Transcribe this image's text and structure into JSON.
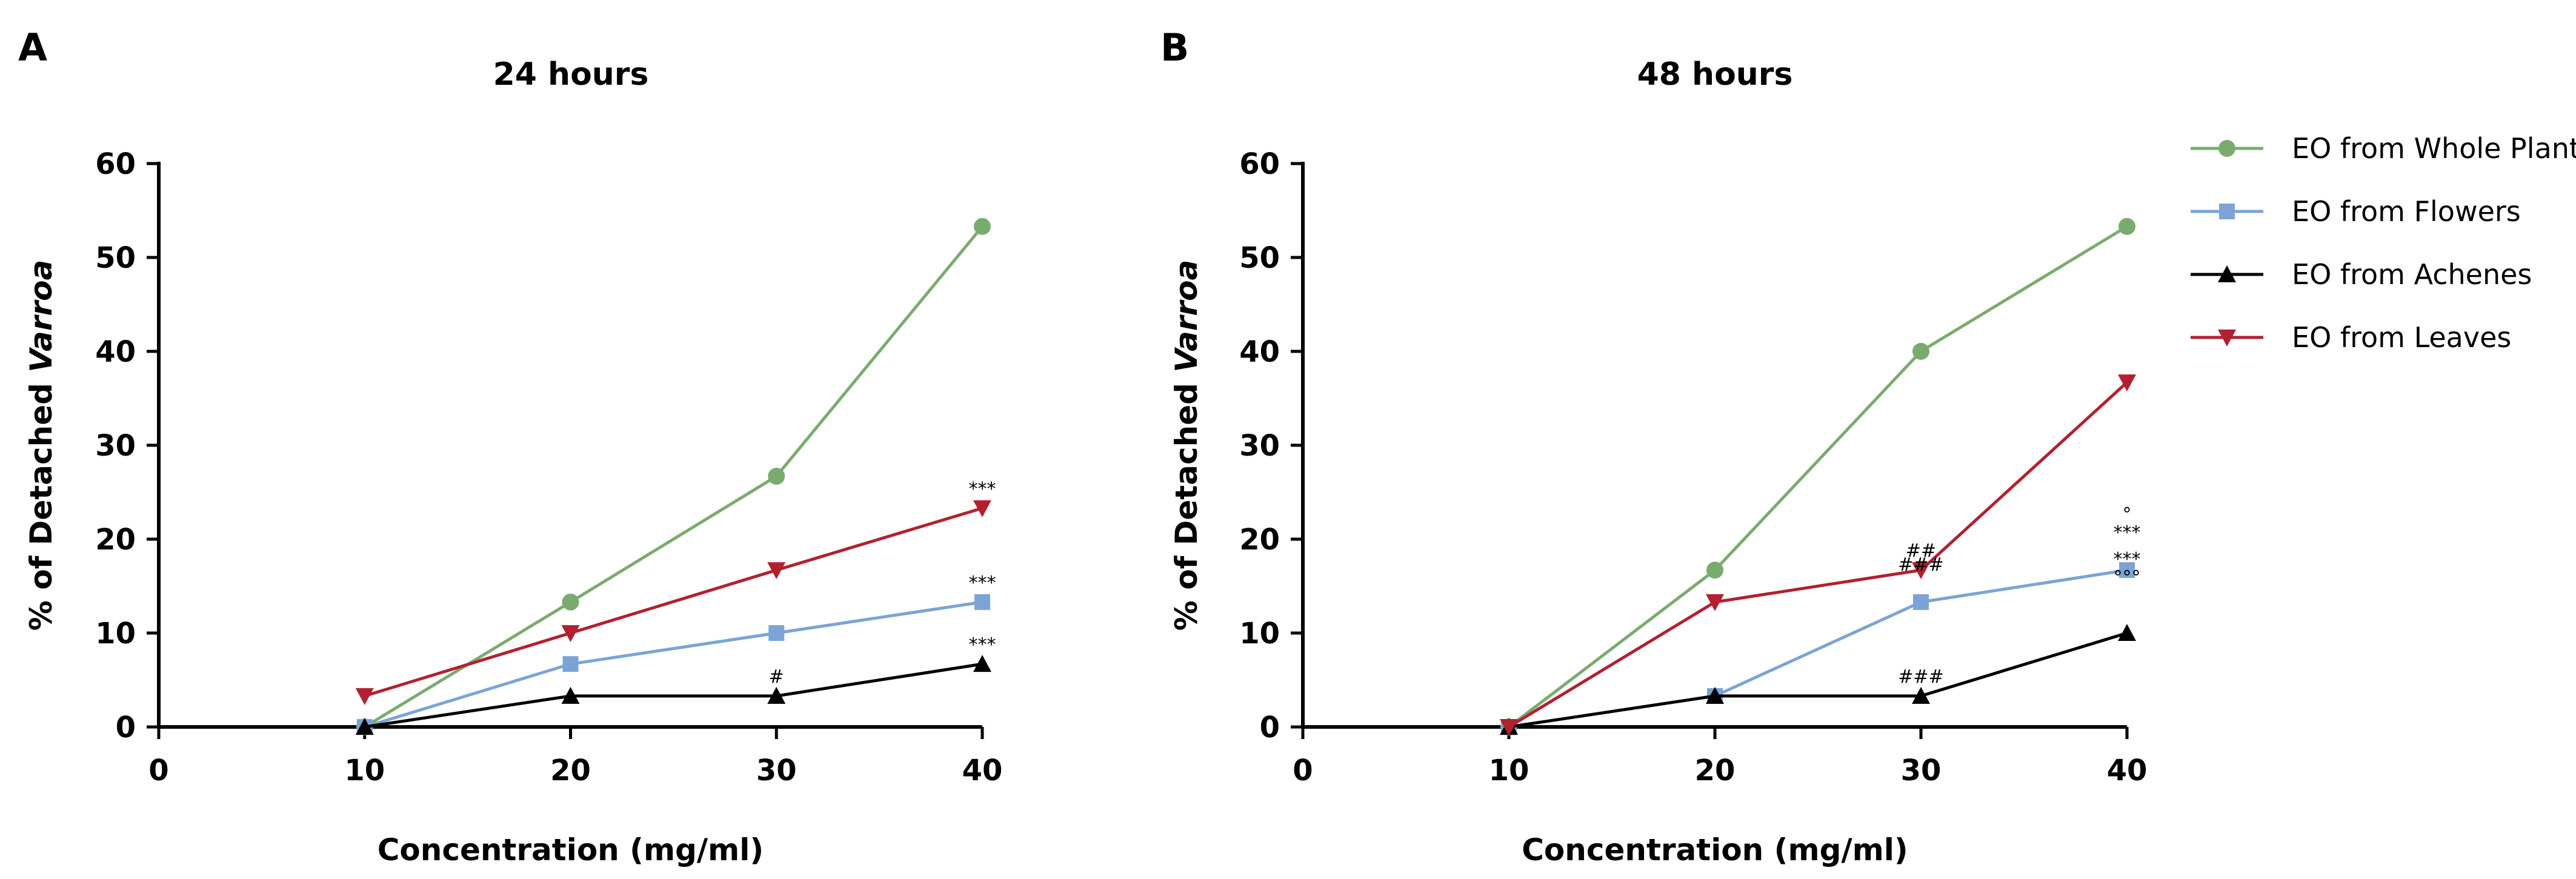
{
  "chart_data": [
    {
      "type": "line",
      "panel_label": "A",
      "title": "24 hours",
      "xlabel": "Concentration (mg/ml)",
      "ylabel_prefix": "% of Detached ",
      "ylabel_italic": "Varroa",
      "xlim": [
        0,
        40
      ],
      "ylim": [
        0,
        60
      ],
      "xticks": [
        "0",
        "10",
        "20",
        "30",
        "40"
      ],
      "yticks": [
        "0",
        "10",
        "20",
        "30",
        "40",
        "50",
        "60"
      ],
      "x": [
        10,
        20,
        30,
        40
      ],
      "series": [
        {
          "name": "EO from Whole Plant",
          "marker": "circle",
          "color": "#7aab6e",
          "values": [
            0,
            13.3,
            26.7,
            53.3
          ]
        },
        {
          "name": "EO from Flowers",
          "marker": "square",
          "color": "#7ba3d6",
          "values": [
            0,
            6.7,
            10,
            13.3
          ]
        },
        {
          "name": "EO from Achenes",
          "marker": "triangle-up",
          "color": "#000000",
          "values": [
            0,
            3.3,
            3.3,
            6.7
          ]
        },
        {
          "name": "EO from Leaves",
          "marker": "triangle-down",
          "color": "#b22030",
          "values": [
            3.3,
            10,
            16.7,
            23.3
          ]
        }
      ],
      "annotations": [
        {
          "text": "***",
          "x": 40,
          "y": 23.3,
          "offset": 1
        },
        {
          "text": "***",
          "x": 40,
          "y": 13.3,
          "offset": 1
        },
        {
          "text": "***",
          "x": 40,
          "y": 6.7,
          "offset": 1
        },
        {
          "text": "#",
          "x": 30,
          "y": 3.3,
          "offset": 1
        }
      ]
    },
    {
      "type": "line",
      "panel_label": "B",
      "title": "48 hours",
      "xlabel": "Concentration (mg/ml)",
      "ylabel_prefix": "% of Detached ",
      "ylabel_italic": "Varroa",
      "xlim": [
        0,
        40
      ],
      "ylim": [
        0,
        60
      ],
      "xticks": [
        "0",
        "10",
        "20",
        "30",
        "40"
      ],
      "yticks": [
        "0",
        "10",
        "20",
        "30",
        "40",
        "50",
        "60"
      ],
      "x": [
        10,
        20,
        30,
        40
      ],
      "series": [
        {
          "name": "EO from Whole Plant",
          "marker": "circle",
          "color": "#7aab6e",
          "values": [
            0,
            16.7,
            40,
            53.3
          ]
        },
        {
          "name": "EO from Flowers",
          "marker": "square",
          "color": "#7ba3d6",
          "values": [
            0,
            3.3,
            13.3,
            16.7
          ]
        },
        {
          "name": "EO from Achenes",
          "marker": "triangle-up",
          "color": "#000000",
          "values": [
            0,
            3.3,
            3.3,
            10
          ]
        },
        {
          "name": "EO from Leaves",
          "marker": "triangle-down",
          "color": "#b22030",
          "values": [
            0,
            13.3,
            16.7,
            36.7
          ]
        }
      ],
      "annotations": [
        {
          "text": "##",
          "x": 30,
          "y": 16.7,
          "offset": 1
        },
        {
          "text": "###",
          "x": 30,
          "y": 13.3,
          "offset": 2
        },
        {
          "text": "###",
          "x": 30,
          "y": 3.3,
          "offset": 1
        },
        {
          "text": "°",
          "x": 40,
          "y": 16.7,
          "offset": 3
        },
        {
          "text": "***",
          "x": 40,
          "y": 16.7,
          "offset": 2
        },
        {
          "text": "***",
          "x": 40,
          "y": 10,
          "offset": 4
        },
        {
          "text": "°°°",
          "x": 40,
          "y": 10,
          "offset": 3
        }
      ]
    }
  ],
  "legend": {
    "position": "right",
    "items": [
      {
        "label": "EO from Whole Plant",
        "marker": "circle",
        "color": "#7aab6e"
      },
      {
        "label": "EO from Flowers",
        "marker": "square",
        "color": "#7ba3d6"
      },
      {
        "label": "EO from Achenes",
        "marker": "triangle-up",
        "color": "#000000"
      },
      {
        "label": "EO from Leaves",
        "marker": "triangle-down",
        "color": "#b22030"
      }
    ]
  }
}
